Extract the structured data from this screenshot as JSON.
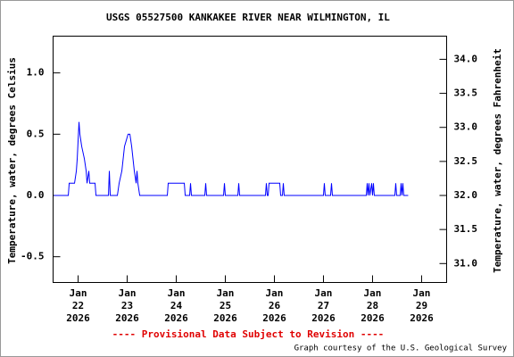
{
  "chart_data": {
    "type": "line",
    "title": "USGS 05527500 KANKAKEE RIVER NEAR WILMINGTON, IL",
    "ylabel": "Temperature, water, degrees Celsius",
    "y2label": "Temperature, water, degrees Fahrenheit",
    "annotations": [
      "---- Provisional Data Subject to Revision ----",
      "Graph courtesy of the U.S. Geological Survey"
    ],
    "color": "#0000ff",
    "xlim": [
      21.49,
      29.51
    ],
    "xticks": [
      {
        "value": 22,
        "label": "Jan\n22\n2026"
      },
      {
        "value": 23,
        "label": "Jan\n23\n2026"
      },
      {
        "value": 24,
        "label": "Jan\n24\n2026"
      },
      {
        "value": 25,
        "label": "Jan\n25\n2026"
      },
      {
        "value": 26,
        "label": "Jan\n26\n2026"
      },
      {
        "value": 27,
        "label": "Jan\n27\n2026"
      },
      {
        "value": 28,
        "label": "Jan\n28\n2026"
      },
      {
        "value": 29,
        "label": "Jan\n29\n2026"
      }
    ],
    "ylim": [
      -0.71,
      1.3
    ],
    "yticks": [
      -0.5,
      {
        "value": 0,
        "label": "0.0"
      },
      0.5,
      {
        "value": 1,
        "label": "1.0"
      }
    ],
    "y2lim": [
      30.722,
      34.34
    ],
    "y2ticks": [
      {
        "value": 31,
        "label": "31.0"
      },
      31.5,
      {
        "value": 32,
        "label": "32.0"
      },
      32.5,
      {
        "value": 33,
        "label": "33.0"
      },
      33.5,
      {
        "value": 34,
        "label": "34.0"
      }
    ],
    "x": [
      21.509,
      21.8,
      21.818,
      21.927,
      21.964,
      21.982,
      22.018,
      22.036,
      22.073,
      22.127,
      22.164,
      22.182,
      22.218,
      22.236,
      22.345,
      22.364,
      22.618,
      22.636,
      22.655,
      22.8,
      22.836,
      22.891,
      22.945,
      23.018,
      23.055,
      23.091,
      23.145,
      23.182,
      23.2,
      23.218,
      23.255,
      23.818,
      23.836,
      24.164,
      24.182,
      24.273,
      24.291,
      24.309,
      24.582,
      24.6,
      24.618,
      24.964,
      24.982,
      25,
      25.255,
      25.273,
      25.291,
      25.818,
      25.836,
      25.855,
      25.873,
      25.891,
      26.109,
      26.127,
      26.164,
      26.182,
      26.2,
      27,
      27.018,
      27.036,
      27.145,
      27.164,
      27.182,
      27.873,
      27.891,
      27.909,
      27.927,
      27.945,
      27.982,
      28,
      28.018,
      28.036,
      28.455,
      28.473,
      28.491,
      28.564,
      28.582,
      28.6,
      28.618,
      28.636,
      28.727
    ],
    "values": [
      0,
      0,
      0.1,
      0.1,
      0.2,
      0.3,
      0.6,
      0.5,
      0.4,
      0.3,
      0.2,
      0.1,
      0.2,
      0.1,
      0.1,
      0,
      0,
      0.2,
      0,
      0,
      0.1,
      0.2,
      0.4,
      0.5,
      0.5,
      0.4,
      0.2,
      0.1,
      0.2,
      0.1,
      0,
      0,
      0.1,
      0.1,
      0,
      0,
      0.1,
      0,
      0,
      0.1,
      0,
      0,
      0.1,
      0,
      0,
      0.1,
      0,
      0,
      0.1,
      0,
      0,
      0.1,
      0.1,
      0,
      0,
      0.1,
      0,
      0,
      0.1,
      0,
      0,
      0.1,
      0,
      0,
      0.1,
      0,
      0.1,
      0,
      0.1,
      0,
      0.1,
      0,
      0,
      0.1,
      0,
      0,
      0.1,
      0,
      0.1,
      0,
      0
    ]
  }
}
